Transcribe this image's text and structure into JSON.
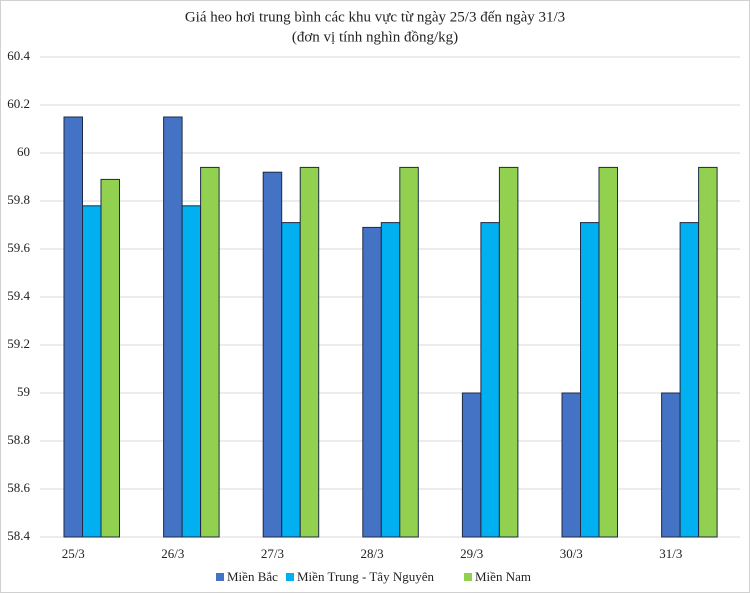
{
  "chart_data": {
    "type": "bar",
    "title": "Giá heo hơi trung bình các khu vực từ ngày 25/3 đến ngày 31/3",
    "subtitle": "(đơn vị tính nghìn đồng/kg)",
    "categories": [
      "25/3",
      "26/3",
      "27/3",
      "28/3",
      "29/3",
      "30/3",
      "31/3"
    ],
    "series": [
      {
        "name": "Miền Bắc",
        "color": "#4472c4",
        "values": [
          60.15,
          60.15,
          59.92,
          59.69,
          59,
          59,
          59
        ]
      },
      {
        "name": "Miền Trung - Tây Nguyên",
        "color": "#00b0f0",
        "values": [
          59.78,
          59.78,
          59.71,
          59.71,
          59.71,
          59.71,
          59.71
        ]
      },
      {
        "name": "Miền Nam",
        "color": "#92d050",
        "values": [
          59.89,
          59.94,
          59.94,
          59.94,
          59.94,
          59.94,
          59.94
        ]
      }
    ],
    "ylim": [
      58.4,
      60.4
    ],
    "yticks": [
      58.4,
      58.6,
      58.8,
      59,
      59.2,
      59.4,
      59.6,
      59.8,
      60,
      60.2,
      60.4
    ],
    "grid": true,
    "legend": "bottom"
  }
}
